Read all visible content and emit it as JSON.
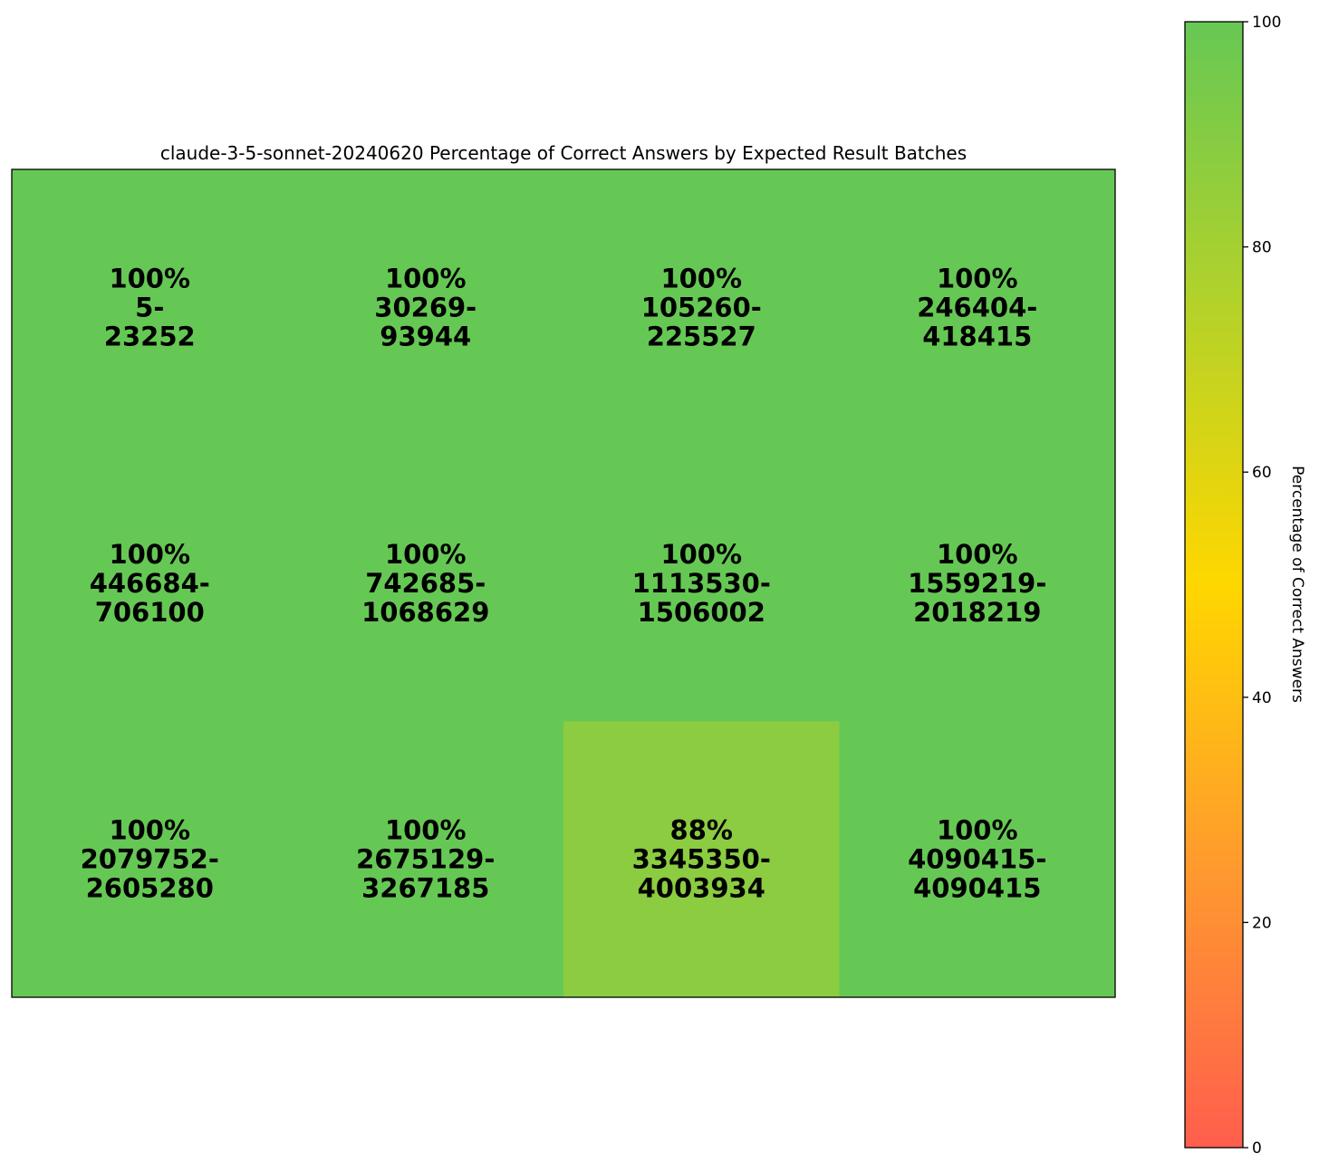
{
  "chart_data": {
    "type": "heatmap",
    "title": "claude-3-5-sonnet-20240620 Percentage of Correct Answers by Expected Result Batches",
    "rows": 3,
    "cols": 4,
    "cells": [
      {
        "value": 100,
        "label": "100%",
        "range_start": "5-",
        "range_end": "23252"
      },
      {
        "value": 100,
        "label": "100%",
        "range_start": "30269-",
        "range_end": "93944"
      },
      {
        "value": 100,
        "label": "100%",
        "range_start": "105260-",
        "range_end": "225527"
      },
      {
        "value": 100,
        "label": "100%",
        "range_start": "246404-",
        "range_end": "418415"
      },
      {
        "value": 100,
        "label": "100%",
        "range_start": "446684-",
        "range_end": "706100"
      },
      {
        "value": 100,
        "label": "100%",
        "range_start": "742685-",
        "range_end": "1068629"
      },
      {
        "value": 100,
        "label": "100%",
        "range_start": "1113530-",
        "range_end": "1506002"
      },
      {
        "value": 100,
        "label": "100%",
        "range_start": "1559219-",
        "range_end": "2018219"
      },
      {
        "value": 100,
        "label": "100%",
        "range_start": "2079752-",
        "range_end": "2605280"
      },
      {
        "value": 100,
        "label": "100%",
        "range_start": "2675129-",
        "range_end": "3267185"
      },
      {
        "value": 88,
        "label": "88%",
        "range_start": "3345350-",
        "range_end": "4003934"
      },
      {
        "value": 100,
        "label": "100%",
        "range_start": "4090415-",
        "range_end": "4090415"
      }
    ],
    "colorbar": {
      "label": "Percentage of Correct Answers",
      "range": [
        0,
        100
      ],
      "ticks": [
        "0",
        "20",
        "40",
        "60",
        "80",
        "100"
      ],
      "colors": {
        "0": "#ff5e4d",
        "50": "#ffd700",
        "100": "#66c854"
      }
    }
  }
}
